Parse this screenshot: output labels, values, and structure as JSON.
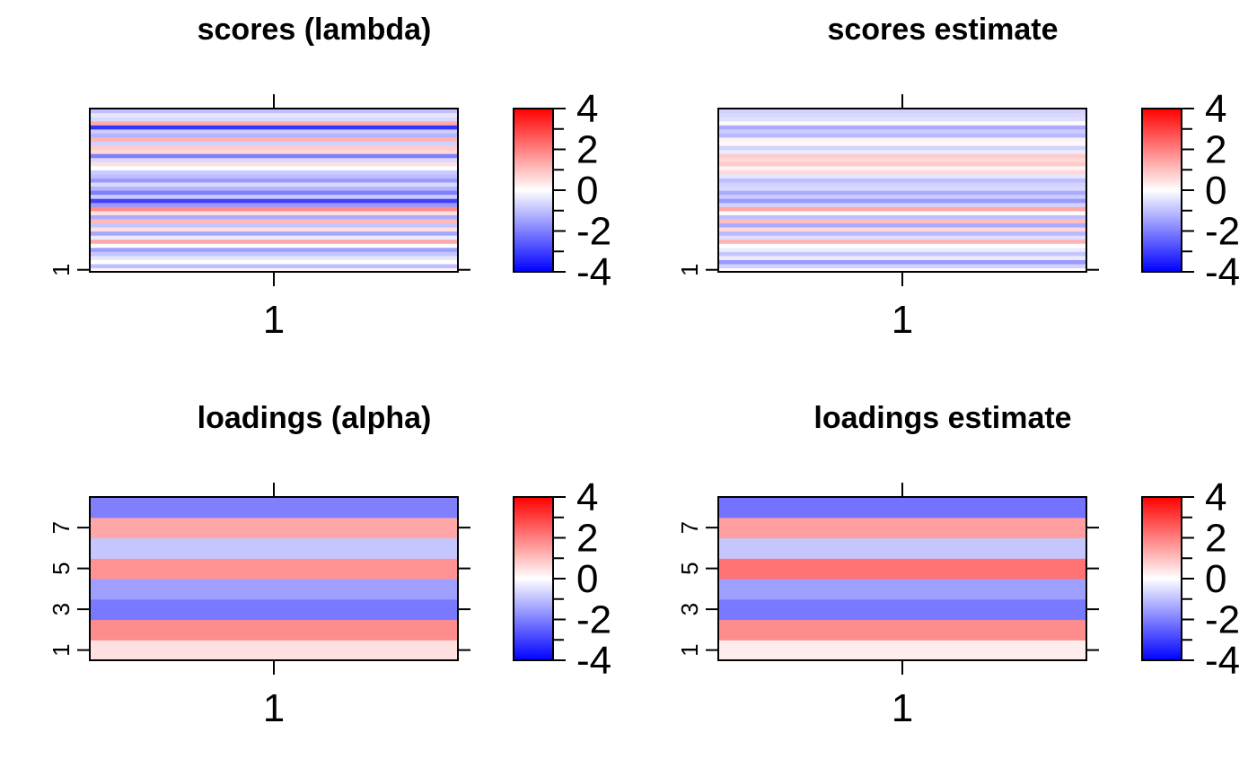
{
  "color_scale": {
    "min": -4,
    "max": 4,
    "low_color": "#0000ff",
    "mid_color": "#ffffff",
    "high_color": "#ff0000",
    "ticks": [
      "4",
      "2",
      "0",
      "-2",
      "-4"
    ],
    "tick_values": [
      4,
      2,
      0,
      -2,
      -4
    ],
    "minor_ticks": [
      3,
      1,
      -1,
      -3
    ]
  },
  "chart_data": [
    {
      "type": "heatmap",
      "title": "scores (lambda)",
      "x_tick_labels": [
        "1"
      ],
      "y_tick_labels": [
        "1"
      ],
      "y_tick_rows": [
        1
      ],
      "n_rows": 40,
      "values": [
        0.15,
        -1.0,
        0.0,
        -0.4,
        -0.9,
        -1.5,
        0.0,
        1.4,
        -0.3,
        -1.4,
        0.5,
        -0.9,
        1.1,
        -1.3,
        0.5,
        1.8,
        -1.6,
        -3.0,
        -0.8,
        -2.0,
        -1.2,
        -0.6,
        -1.6,
        -1.0,
        -0.8,
        0.0,
        0.5,
        -0.6,
        -2.0,
        0.6,
        0.8,
        -0.7,
        1.2,
        -1.2,
        -0.8,
        -3.2,
        1.3,
        -0.6,
        -0.4,
        -1.0
      ]
    },
    {
      "type": "heatmap",
      "title": "scores estimate",
      "x_tick_labels": [
        "1"
      ],
      "y_tick_labels": [
        "1"
      ],
      "y_tick_rows": [
        1
      ],
      "n_rows": 40,
      "values": [
        0.1,
        -0.7,
        -1.6,
        -0.3,
        -0.9,
        -0.3,
        0.0,
        1.2,
        -0.5,
        -1.1,
        0.6,
        -1.3,
        1.0,
        -1.0,
        0.1,
        1.4,
        -0.7,
        -1.6,
        -0.8,
        -1.3,
        -0.6,
        -0.7,
        -1.0,
        -0.4,
        0.6,
        0.2,
        0.8,
        0.6,
        0.8,
        -0.3,
        -0.7,
        0.1,
        0.2,
        -1.1,
        -0.8,
        -1.3,
        0.1,
        -0.5,
        -0.6,
        -0.7
      ]
    },
    {
      "type": "heatmap",
      "title": "loadings (alpha)",
      "x_tick_labels": [
        "1"
      ],
      "y_tick_labels": [
        "1",
        "3",
        "5",
        "7"
      ],
      "y_tick_rows": [
        1,
        3,
        5,
        7
      ],
      "n_rows": 8,
      "values": [
        0.5,
        1.8,
        -2.1,
        -1.5,
        1.7,
        -0.9,
        1.4,
        -2.0
      ]
    },
    {
      "type": "heatmap",
      "title": "loadings estimate",
      "x_tick_labels": [
        "1"
      ],
      "y_tick_labels": [
        "1",
        "3",
        "5",
        "7"
      ],
      "y_tick_rows": [
        1,
        3,
        5,
        7
      ],
      "n_rows": 8,
      "values": [
        0.3,
        1.8,
        -2.1,
        -1.5,
        2.2,
        -0.9,
        1.5,
        -2.2
      ]
    }
  ]
}
